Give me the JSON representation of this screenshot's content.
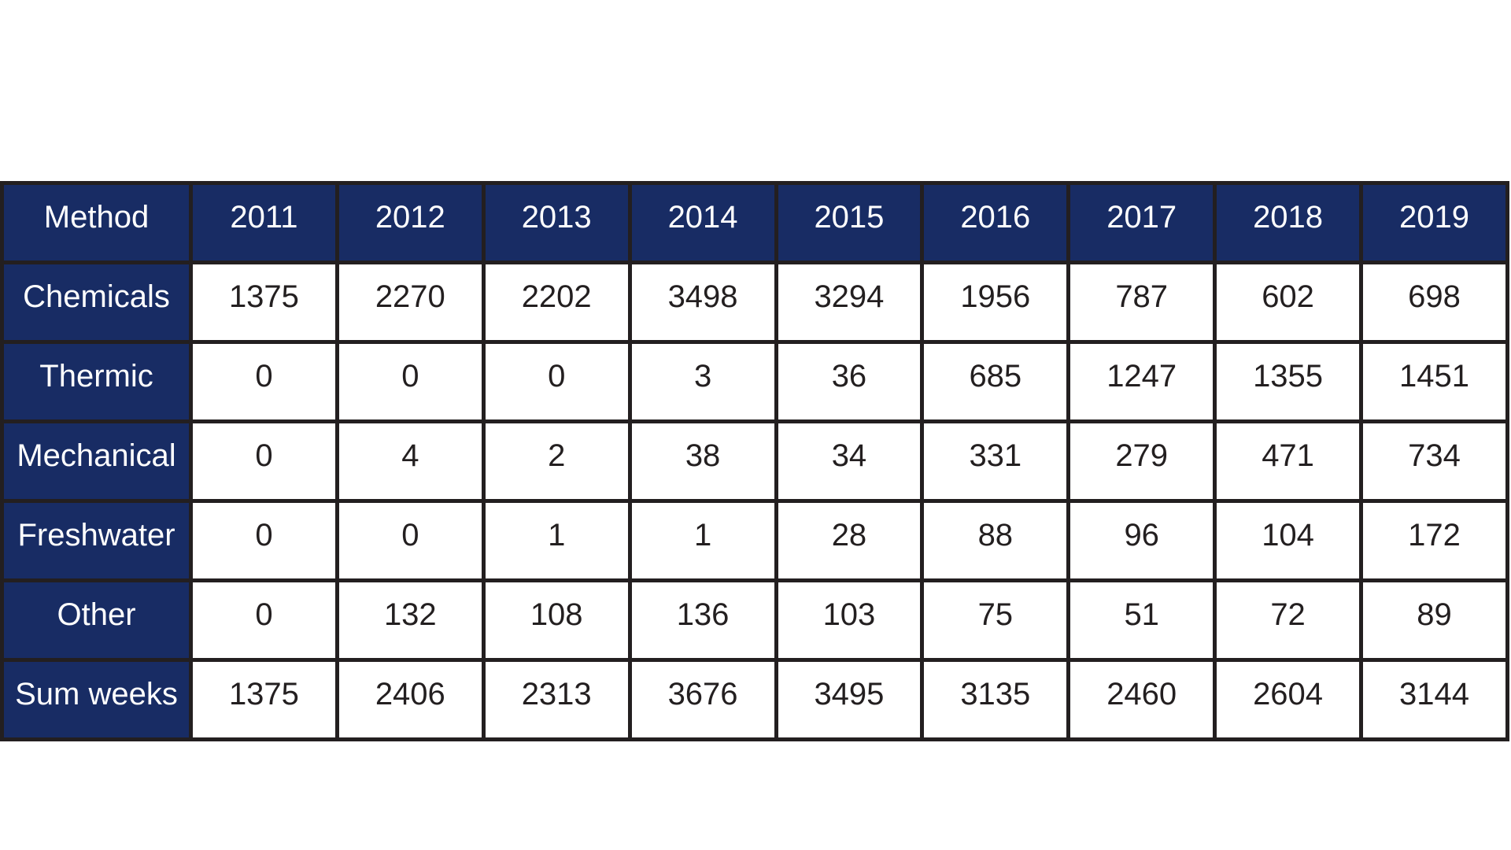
{
  "chart_data": {
    "type": "table",
    "title": "",
    "columns": [
      "Method",
      "2011",
      "2012",
      "2013",
      "2014",
      "2015",
      "2016",
      "2017",
      "2018",
      "2019"
    ],
    "rows": [
      {
        "label": "Chemicals",
        "values": [
          "1375",
          "2270",
          "2202",
          "3498",
          "3294",
          "1956",
          "787",
          "602",
          "698"
        ]
      },
      {
        "label": "Thermic",
        "values": [
          "0",
          "0",
          "0",
          "3",
          "36",
          "685",
          "1247",
          "1355",
          "1451"
        ]
      },
      {
        "label": "Mechanical",
        "values": [
          "0",
          "4",
          "2",
          "38",
          "34",
          "331",
          "279",
          "471",
          "734"
        ]
      },
      {
        "label": "Freshwater",
        "values": [
          "0",
          "0",
          "1",
          "1",
          "28",
          "88",
          "96",
          "104",
          "172"
        ]
      },
      {
        "label": "Other",
        "values": [
          "0",
          "132",
          "108",
          "136",
          "103",
          "75",
          "51",
          "72",
          "89"
        ]
      },
      {
        "label": "Sum weeks",
        "values": [
          "1375",
          "2406",
          "2313",
          "3676",
          "3495",
          "3135",
          "2460",
          "2604",
          "3144"
        ]
      }
    ]
  },
  "colors": {
    "header_bg": "#182c64",
    "border": "#231f20",
    "header_text": "#ffffff",
    "cell_text": "#231f20",
    "cell_bg": "#ffffff",
    "page_bg": "#ffffff"
  }
}
